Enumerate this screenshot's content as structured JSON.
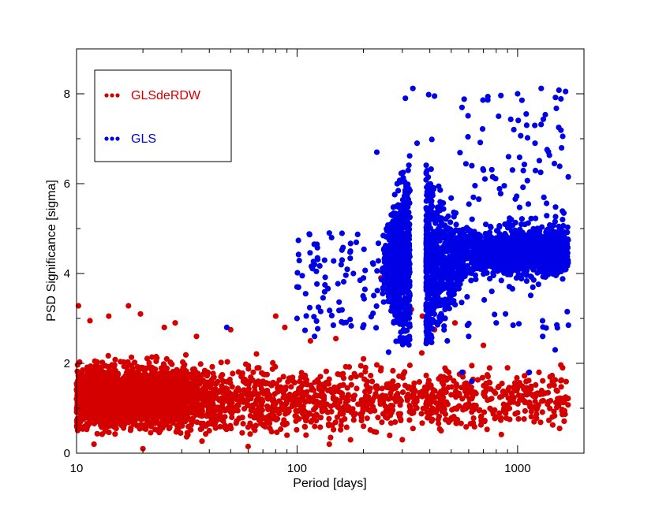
{
  "chart_data": {
    "type": "scatter",
    "xlabel": "Period [days]",
    "ylabel": "PSD Significance [sigma]",
    "xscale": "log",
    "xlim": [
      10,
      2000
    ],
    "ylim": [
      0,
      9
    ],
    "x_ticks": [
      10,
      100,
      1000
    ],
    "x_tick_labels": [
      "10",
      "100",
      "1000"
    ],
    "y_ticks": [
      0,
      2,
      4,
      6,
      8
    ],
    "y_tick_labels": [
      "0",
      "2",
      "4",
      "6",
      "8"
    ],
    "grid": false,
    "legend": {
      "placement": "top-left",
      "boxed": true
    },
    "series": [
      {
        "name": "GLSdeRDW",
        "color": "#d40000",
        "summary": [
          {
            "x_range": [
              10,
              30
            ],
            "y_range": [
              0,
              3.3
            ],
            "density": "very high"
          },
          {
            "x_range": [
              30,
              1700
            ],
            "y_range": [
              0,
              3.1
            ],
            "density": "decreasing with period"
          }
        ],
        "points": [
          [
            10.2,
            3.28
          ],
          [
            11.5,
            2.95
          ],
          [
            17.2,
            3.28
          ],
          [
            19.5,
            3.1
          ],
          [
            14,
            3.05
          ],
          [
            25,
            2.8
          ],
          [
            28,
            2.9
          ],
          [
            35,
            2.6
          ],
          [
            50,
            2.75
          ],
          [
            80,
            3.05
          ],
          [
            88,
            2.8
          ],
          [
            115,
            2.5
          ],
          [
            150,
            2.55
          ],
          [
            200,
            2.1
          ],
          [
            240,
            3.9
          ],
          [
            330,
            3.2
          ],
          [
            370,
            3.05
          ],
          [
            420,
            2.75
          ],
          [
            520,
            2.9
          ],
          [
            620,
            1.95
          ],
          [
            700,
            2.4
          ],
          [
            900,
            1.9
          ],
          [
            1250,
            1.8
          ],
          [
            1500,
            1.4
          ],
          [
            1600,
            1.9
          ],
          [
            1650,
            1.25
          ],
          [
            1550,
            0.55
          ],
          [
            1000,
            0.9
          ],
          [
            800,
            0.8
          ],
          [
            600,
            1.1
          ],
          [
            450,
            0.5
          ],
          [
            300,
            0.3
          ],
          [
            200,
            0.6
          ],
          [
            140,
            0.2
          ],
          [
            90,
            0.4
          ],
          [
            60,
            0.15
          ],
          [
            40,
            0.5
          ],
          [
            20,
            0.1
          ],
          [
            12,
            0.2
          ],
          [
            15,
            1.2
          ],
          [
            22,
            1.5
          ],
          [
            33,
            1.1
          ],
          [
            45,
            1.4
          ],
          [
            70,
            1.6
          ],
          [
            110,
            1.3
          ],
          [
            180,
            1.2
          ],
          [
            280,
            1.45
          ],
          [
            500,
            1.3
          ],
          [
            750,
            1.2
          ],
          [
            1100,
            1.3
          ]
        ]
      },
      {
        "name": "GLS",
        "color": "#0000e6",
        "summary": [
          {
            "x_range": [
              230,
              330
            ],
            "y_range": [
              2.5,
              8.1
            ],
            "density": "high"
          },
          {
            "x_range": [
              380,
              540
            ],
            "y_range": [
              2.5,
              8.0
            ],
            "density": "high"
          },
          {
            "x_range": [
              550,
              1700
            ],
            "y_range": [
              2.7,
              8.1
            ],
            "density": "high",
            "center_y": 4.5
          }
        ],
        "points": [
          [
            335,
            8.12
          ],
          [
            395,
            7.98
          ],
          [
            420,
            7.95
          ],
          [
            310,
            7.9
          ],
          [
            1000,
            8.0
          ],
          [
            1280,
            8.12
          ],
          [
            1540,
            8.08
          ],
          [
            1650,
            8.05
          ],
          [
            820,
            7.5
          ],
          [
            1100,
            7.3
          ],
          [
            1200,
            6.9
          ],
          [
            910,
            6.6
          ],
          [
            620,
            6.4
          ],
          [
            700,
            6.3
          ],
          [
            230,
            6.7
          ],
          [
            350,
            6.9
          ],
          [
            140,
            4.9
          ],
          [
            120,
            4.2
          ],
          [
            100,
            3.7
          ],
          [
            160,
            4.3
          ],
          [
            180,
            4.0
          ],
          [
            200,
            3.9
          ],
          [
            125,
            3.25
          ],
          [
            48,
            2.8
          ],
          [
            100,
            3.0
          ],
          [
            120,
            2.6
          ],
          [
            260,
            2.25
          ],
          [
            480,
            2.5
          ],
          [
            600,
            2.6
          ],
          [
            800,
            2.9
          ],
          [
            1300,
            2.6
          ],
          [
            1480,
            2.3
          ],
          [
            1700,
            2.85
          ],
          [
            1130,
            1.8
          ],
          [
            620,
            1.6
          ],
          [
            560,
            1.8
          ],
          [
            280,
            5.2
          ],
          [
            270,
            4.7
          ],
          [
            300,
            5.0
          ],
          [
            420,
            5.3
          ],
          [
            460,
            4.8
          ],
          [
            520,
            4.6
          ],
          [
            700,
            4.4
          ],
          [
            900,
            4.5
          ],
          [
            1050,
            4.8
          ],
          [
            1200,
            4.3
          ],
          [
            1350,
            4.7
          ],
          [
            1500,
            4.5
          ],
          [
            1600,
            5.2
          ],
          [
            1650,
            4.2
          ]
        ]
      }
    ]
  }
}
